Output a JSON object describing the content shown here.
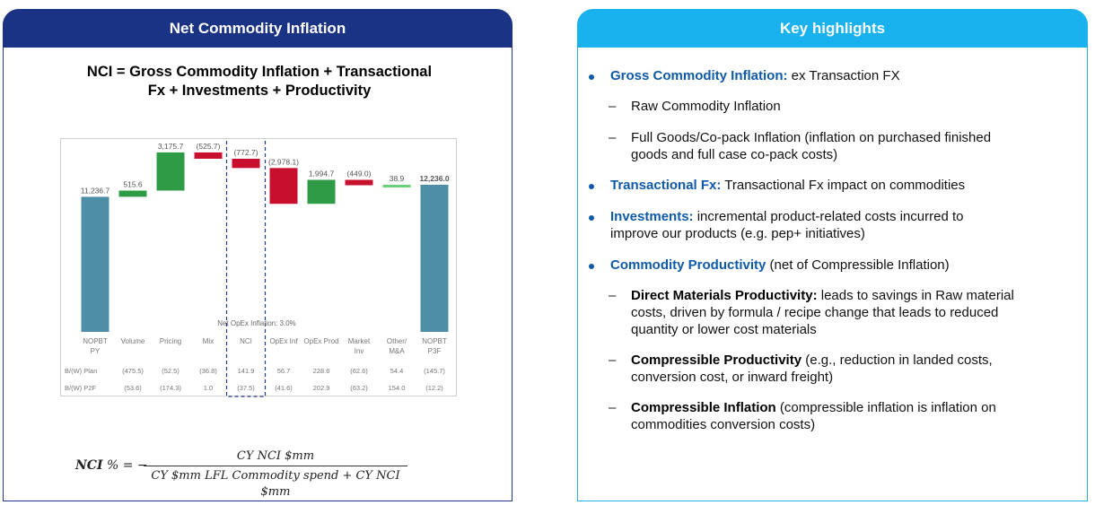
{
  "left_panel": {
    "header": "Net Commodity Inflation",
    "formula_title_line1": "NCI = Gross Commodity Inflation + Transactional",
    "formula_title_line2": "Fx + Investments + Productivity",
    "nci_formula": {
      "lhs_var": "NCI",
      "lhs_rest": " % = −",
      "numerator": "CY NCI $mm",
      "denominator": "CY $mm LFL Commodity spend +  CY NCI $mm"
    }
  },
  "chart_data": {
    "type": "waterfall",
    "categories": [
      "NOPBT\nPY",
      "Volume",
      "Pricing",
      "Mix",
      "NCI",
      "OpEx Inf",
      "OpEx Prod",
      "Market\nInv",
      "Other/\nM&A",
      "NOPBT\nP3F"
    ],
    "values": [
      11236.7,
      515.6,
      3175.7,
      -525.7,
      -772.7,
      -2978.1,
      1994.7,
      -449.0,
      38.9,
      12236.0
    ],
    "kinds": [
      "total",
      "delta",
      "delta",
      "delta",
      "delta",
      "delta",
      "delta",
      "delta",
      "delta",
      "total"
    ],
    "value_labels": [
      "11,236.7",
      "515.6",
      "3,175.7",
      "(525.7)",
      "(772.7)",
      "(2,978.1)",
      "1,994.7",
      "(449.0)",
      "38.9",
      "12,236.0"
    ],
    "bold_labels": [
      false,
      false,
      false,
      false,
      false,
      false,
      false,
      false,
      false,
      true
    ],
    "highlight_category": "NCI",
    "annotation": "Net OpEx Inflation: 3.0%",
    "colors": {
      "total": "#4e8ea6",
      "increase": "#2f9b47",
      "decrease": "#c8102e",
      "neutral": "#6ccf7a",
      "highlight_border": "#1f3a8a"
    },
    "table_rows": [
      {
        "label": "B/(W) Plan",
        "values": [
          "(475.5)",
          "(52.5)",
          "(36.8)",
          "141.9",
          "56.7",
          "228.6",
          "(62.6)",
          "54.4",
          "(145.7)"
        ]
      },
      {
        "label": "B/(W) P2F",
        "values": [
          "(53.6)",
          "(174.3)",
          "1.0",
          "(37.5)",
          "(41.6)",
          "202.9",
          "(63.2)",
          "154.0",
          "(12.2)"
        ]
      }
    ]
  },
  "right_panel": {
    "header": "Key highlights",
    "items": [
      {
        "type": "bullet",
        "bold": "Gross Commodity Inflation:",
        "text": " ex Transaction FX"
      },
      {
        "type": "dash",
        "text": "Raw Commodity Inflation"
      },
      {
        "type": "dash",
        "text": "Full Goods/Co-pack Inflation (inflation on purchased finished",
        "text2": "goods and full case co-pack costs)"
      },
      {
        "type": "bullet",
        "bold": "Transactional Fx:",
        "text": " Transactional Fx impact on commodities"
      },
      {
        "type": "bullet",
        "bold": "Investments:",
        "text": " incremental product-related costs incurred to",
        "text2": "improve our products (e.g. pep+ initiatives)"
      },
      {
        "type": "bullet",
        "bold": "Commodity Productivity",
        "text": " (net of Compressible Inflation)"
      },
      {
        "type": "subdash",
        "bold": "Direct Materials Productivity:",
        "text": " leads to savings in Raw material",
        "text2": "costs, driven by formula / recipe change that leads to reduced",
        "text3": "quantity or lower cost materials"
      },
      {
        "type": "subdash",
        "bold": "Compressible Productivity",
        "text": " (e.g., reduction in landed costs,",
        "text2": "conversion cost, or inward freight)"
      },
      {
        "type": "subdash",
        "bold": "Compressible Inflation",
        "text": " (compressible inflation is inflation on",
        "text2": "commodities conversion costs)"
      }
    ]
  }
}
